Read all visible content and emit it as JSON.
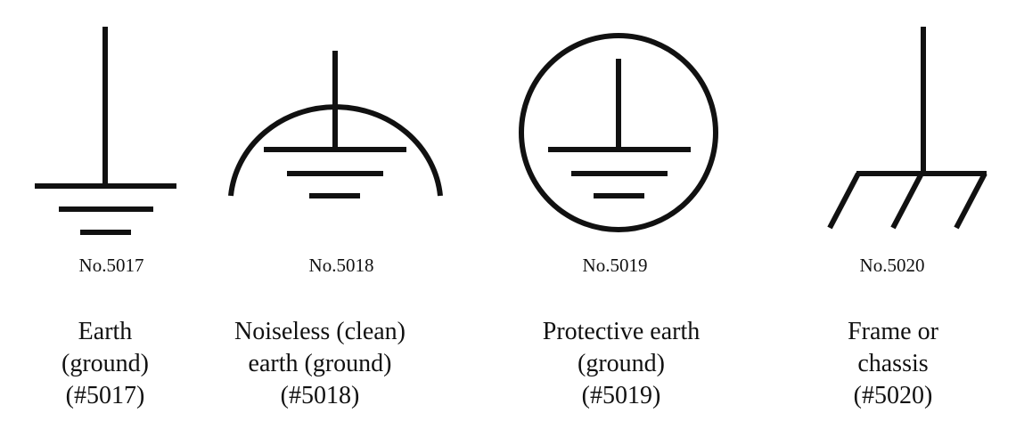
{
  "symbols": [
    {
      "id": "earth",
      "icon": "earth-ground-icon",
      "number": "No.5017",
      "caption": [
        "Earth",
        "(ground)",
        "(#5017)"
      ]
    },
    {
      "id": "noiseless-earth",
      "icon": "noiseless-earth-icon",
      "number": "No.5018",
      "caption": [
        "Noiseless (clean)",
        "earth (ground)",
        "(#5018)"
      ]
    },
    {
      "id": "protective-earth",
      "icon": "protective-earth-icon",
      "number": "No.5019",
      "caption": [
        "Protective earth",
        "(ground)",
        "(#5019)"
      ]
    },
    {
      "id": "frame-chassis",
      "icon": "frame-chassis-icon",
      "number": "No.5020",
      "caption": [
        "Frame or",
        "chassis",
        "(#5020)"
      ]
    }
  ],
  "colors": {
    "stroke": "#111111",
    "background": "#ffffff"
  }
}
